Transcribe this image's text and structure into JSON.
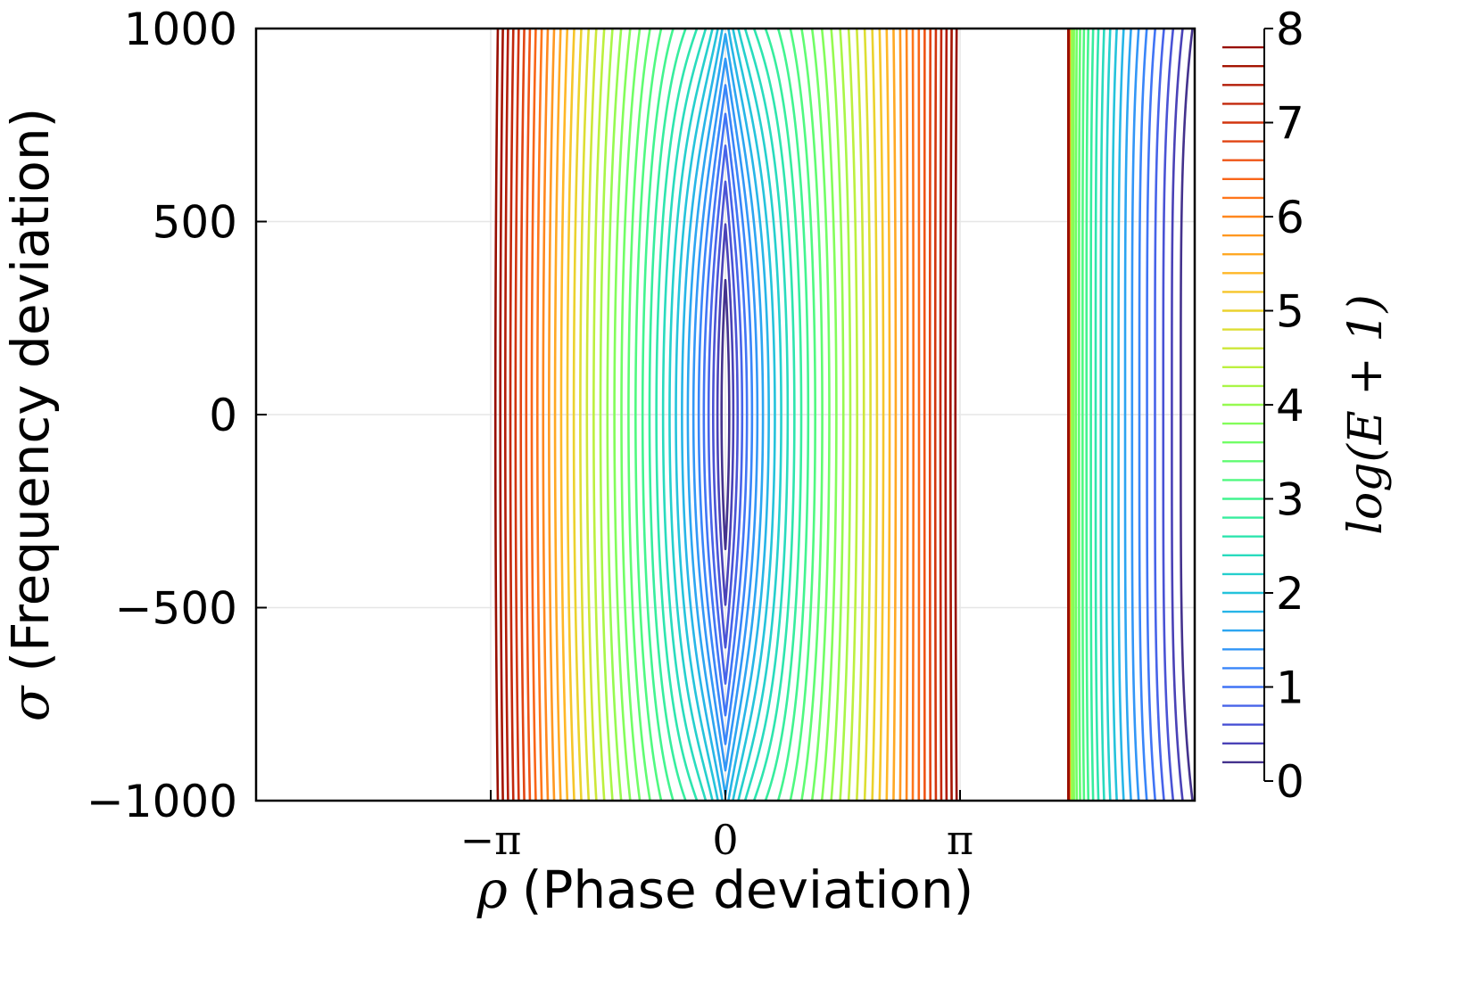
{
  "chart_data": {
    "type": "contour",
    "xlabel_symbol": "ρ",
    "xlabel_text": "(Phase deviation)",
    "ylabel_symbol": "σ",
    "ylabel_text": "(Frequency deviation)",
    "colorbar_label": "log(E + 1)",
    "xlim": [
      -6.283,
      6.283
    ],
    "ylim": [
      -1000,
      1000
    ],
    "xticks": [
      {
        "value": -3.1416,
        "label": "−π"
      },
      {
        "value": 0,
        "label": "0"
      },
      {
        "value": 3.1416,
        "label": "π"
      }
    ],
    "yticks": [
      {
        "value": 1000,
        "label": "1000"
      },
      {
        "value": 500,
        "label": "500"
      },
      {
        "value": 0,
        "label": "0"
      },
      {
        "value": -500,
        "label": "−500"
      },
      {
        "value": -1000,
        "label": "−1000"
      }
    ],
    "colorbar_range": [
      0,
      8
    ],
    "colorbar_ticks": [
      "0",
      "1",
      "2",
      "3",
      "4",
      "5",
      "6",
      "7",
      "8"
    ],
    "contour_levels": [
      0.2,
      0.4,
      0.6,
      0.8,
      1.0,
      1.2,
      1.4,
      1.6,
      1.8,
      2.0,
      2.2,
      2.4,
      2.6,
      2.8,
      3.0,
      3.2,
      3.4,
      3.6,
      3.8,
      4.0,
      4.2,
      4.4,
      4.6,
      4.8,
      5.0,
      5.2,
      5.4,
      5.6,
      5.8,
      6.0,
      6.2,
      6.4,
      6.6,
      6.8,
      7.0,
      7.2,
      7.4,
      7.6,
      7.8
    ],
    "colormap": "turbo",
    "grid": true
  }
}
